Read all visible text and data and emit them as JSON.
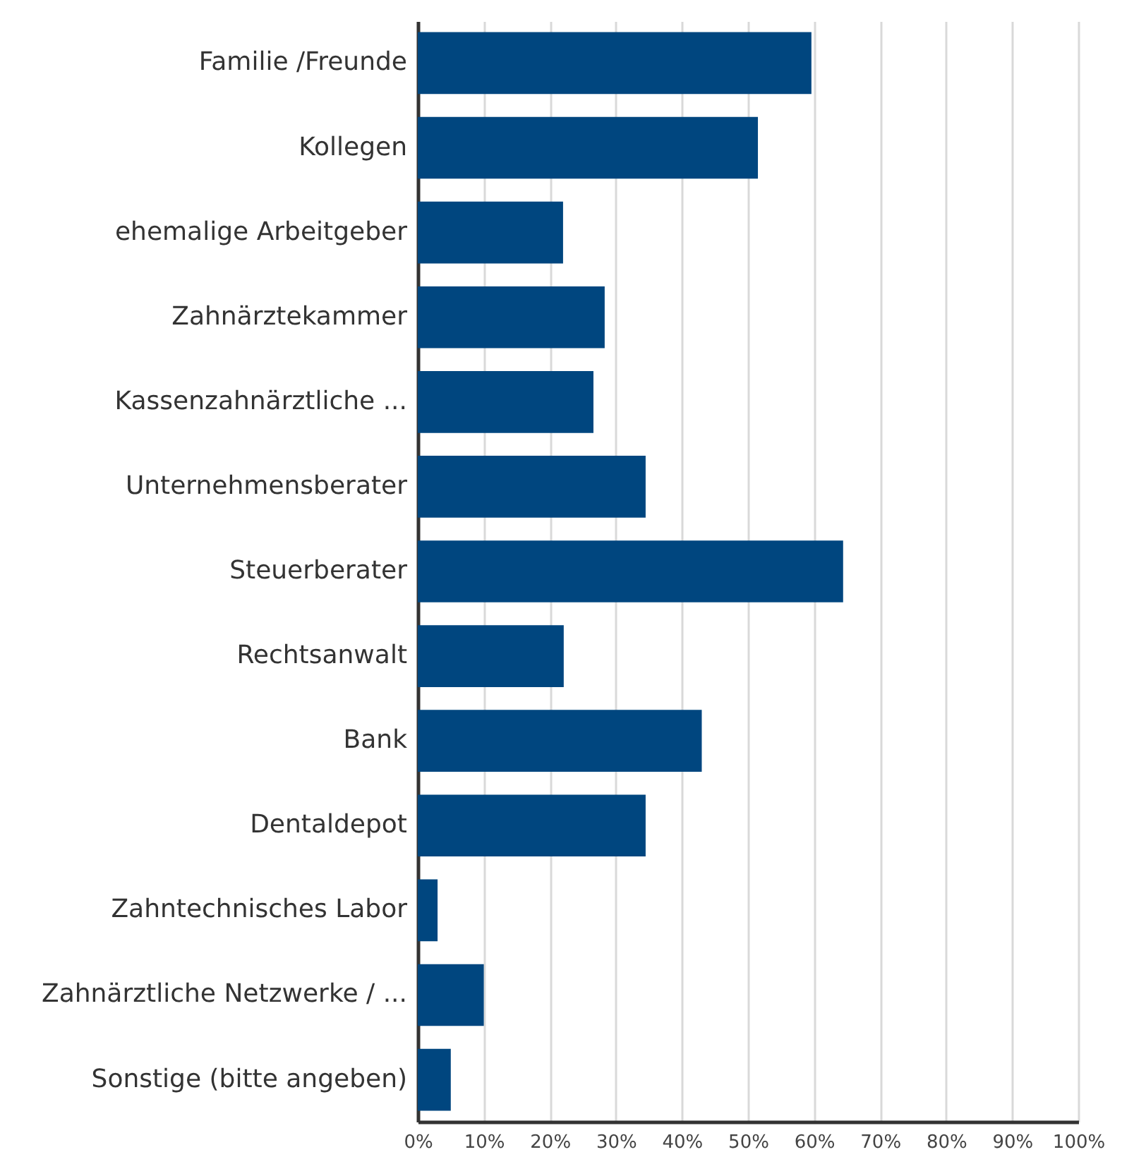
{
  "chart_data": {
    "type": "bar",
    "orientation": "horizontal",
    "categories": [
      "Familie /Freunde",
      "Kollegen",
      "ehemalige Arbeitgeber",
      "Zahnärztekammer",
      "Kassenzahnärztliche ...",
      "Unternehmensberater",
      "Steuerberater",
      "Rechtsanwalt",
      "Bank",
      "Dentaldepot",
      "Zahntechnisches Labor",
      "Zahnärztliche Netzwerke / ...",
      "Sonstige (bitte angeben)"
    ],
    "values": [
      59.6,
      51.5,
      22,
      28.3,
      26.6,
      34.5,
      64.4,
      22.1,
      43,
      34.5,
      3,
      10,
      5
    ],
    "color": "#00467f",
    "xlim": [
      0,
      100
    ],
    "xticks": [
      {
        "value": 0,
        "label": "0%"
      },
      {
        "value": 10,
        "label": "10%"
      },
      {
        "value": 20,
        "label": "20%"
      },
      {
        "value": 30,
        "label": "30%"
      },
      {
        "value": 40,
        "label": "40%"
      },
      {
        "value": 50,
        "label": "50%"
      },
      {
        "value": 60,
        "label": "60%"
      },
      {
        "value": 70,
        "label": "70%"
      },
      {
        "value": 80,
        "label": "80%"
      },
      {
        "value": 90,
        "label": "90%"
      },
      {
        "value": 100,
        "label": "100%"
      }
    ],
    "grid": "x"
  }
}
